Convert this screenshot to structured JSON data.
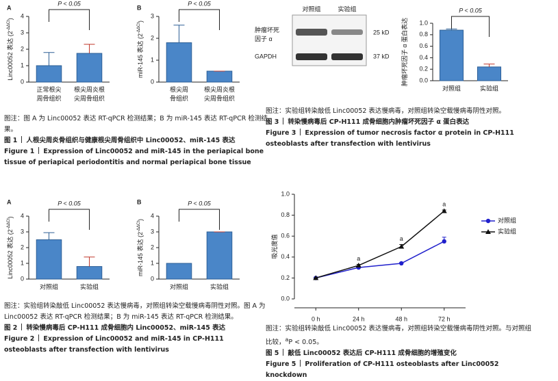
{
  "chart_data": [
    {
      "type": "bar",
      "panel": "A",
      "y_label": "Linc00052 表达 (2",
      "y_label_sup": "-ΔΔCt",
      "y_label_end": ")",
      "categories": [
        "正常根尖\n周骨组织",
        "根尖周炎根\n尖周骨组织"
      ],
      "values": [
        1,
        1.75
      ],
      "errors": [
        0.8,
        0.55
      ],
      "color": "#4a86c8",
      "ylim": [
        0,
        4
      ],
      "yticks": [
        0,
        1,
        2,
        3,
        4
      ],
      "annotation": "P < 0.05"
    },
    {
      "type": "bar",
      "panel": "B",
      "y_label": "miR-145 表达 (2",
      "y_label_sup": "-ΔΔCt",
      "y_label_end": ")",
      "categories": [
        "根尖周\n骨组织",
        "根尖周炎根\n尖周骨组织"
      ],
      "values": [
        1.8,
        0.5
      ],
      "errors": [
        0.8,
        0
      ],
      "color": "#4a86c8",
      "ylim": [
        0,
        3
      ],
      "yticks": [
        0,
        1,
        2,
        3
      ],
      "annotation": "P < 0.05"
    },
    {
      "type": "bar",
      "panel": "A",
      "y_label": "Linc00052 表达 (2",
      "y_label_sup": "-ΔΔCt",
      "y_label_end": ")",
      "categories": [
        "对照组",
        "实验组"
      ],
      "values": [
        2.5,
        0.8
      ],
      "errors": [
        0.45,
        0.6
      ],
      "color": "#4a86c8",
      "ylim": [
        0,
        4
      ],
      "yticks": [
        0,
        1,
        2,
        3,
        4
      ],
      "annotation": "P < 0.05"
    },
    {
      "type": "bar",
      "panel": "B",
      "y_label": "miR-145 表达 (2",
      "y_label_sup": "-ΔΔCt",
      "y_label_end": ")",
      "categories": [
        "对照组",
        "实验组"
      ],
      "values": [
        1,
        3
      ],
      "errors": [
        0,
        0
      ],
      "color": "#4a86c8",
      "ylim": [
        0,
        4
      ],
      "yticks": [
        0,
        1,
        2,
        3,
        4
      ],
      "annotation": "P < 0.05"
    },
    {
      "type": "bar",
      "y_label": "肿瘤坏死因子 α 蛋白表达",
      "categories": [
        "对照组",
        "实验组"
      ],
      "values": [
        0.88,
        0.24
      ],
      "errors": [
        0.02,
        0.05
      ],
      "color": "#4a86c8",
      "ylim": [
        0,
        1
      ],
      "yticks": [
        {
          "value": 0,
          "label": "0.0"
        },
        0.2,
        0.4,
        0.6,
        0.8,
        {
          "value": 1,
          "label": "1.0"
        }
      ],
      "annotation": "P < 0.05"
    },
    {
      "type": "line",
      "y_label": "吸光度值",
      "categories": [
        "0 h",
        "24 h",
        "48 h",
        "72 h"
      ],
      "ylim": [
        0,
        1
      ],
      "yticks": [
        {
          "value": 0,
          "label": "0.0"
        },
        0.2,
        0.4,
        0.6,
        0.8,
        {
          "value": 1,
          "label": "1.0"
        }
      ],
      "series": [
        {
          "name": "对照组",
          "color": "#2020cc",
          "marker": "circle",
          "values": [
            0.2,
            0.3,
            0.34,
            0.55
          ],
          "errors": [
            0,
            0.01,
            0.01,
            0.04
          ]
        },
        {
          "name": "实验组",
          "color": "#111111",
          "marker": "triangle",
          "values": [
            0.2,
            0.32,
            0.5,
            0.84
          ],
          "errors": [
            0,
            0.01,
            0.02,
            0.01
          ],
          "markers": [
            null,
            "a",
            "a",
            "a"
          ]
        }
      ]
    }
  ],
  "blot": {
    "groups": [
      "对照组",
      "实验组"
    ],
    "target": "肿瘤坏死\n因子 α",
    "target_size": "25 kD",
    "control": "GAPDH",
    "control_size": "37 kD"
  },
  "figures": [
    {
      "note": "图注：图 A 为 Linc00052 表达 RT-qPCR 检测结果；B 为 miR-145 表达 RT-qPCR 检测结果。",
      "label": "图 1",
      "title": "人根尖周炎骨组织与健康根尖周骨组织中 Linc00052、miR-145 表达",
      "label_en": "Figure 1",
      "title_en": "Expression of Linc00052 and miR-145 in the periapical bone tissue of periapical periodontitis and normal periapical bone tissue"
    },
    {
      "note": "图注：实验组转染敲低 Linc00052 表达慢病毒，对照组转染空载慢病毒阴性对照。图 A 为 Linc00052 表达 RT-qPCR 检测结果；B 为 miR-145 表达 RT-qPCR 检测结果。",
      "label": "图 2",
      "title": "转染慢病毒后 CP-H111 成骨细胞内 Linc00052、miR-145 表达",
      "label_en": "Figure 2",
      "title_en": "Expression of Linc00052 and miR-145 in CP-H111 osteoblasts after transfection with lentivirus"
    },
    {
      "note": "图注：实验组转染敲低 Linc00052 表达慢病毒，对照组转染空载慢病毒阴性对照。",
      "label": "图 3",
      "title": "转染慢病毒后 CP-H111 成骨细胞内肿瘤坏死因子 α 蛋白表达",
      "label_en": "Figure 3",
      "title_en": "Expression of tumor necrosis factor α protein in CP-H111 osteoblasts after transfection with lentivirus"
    },
    {
      "note": "图注：实验组转染敲低 Linc00052 表达慢病毒，对照组转染空载慢病毒阴性对照。与对照组比较，",
      "note_sup": "a",
      "note_end": "P < 0.05。",
      "label": "图 5",
      "title": "敲低 Linc00052 表达后 CP-H111 成骨细胞的增殖变化",
      "label_en": "Figure 5",
      "title_en": "Proliferation of CP-H111 osteoblasts after Linc00052 knockdown"
    }
  ]
}
